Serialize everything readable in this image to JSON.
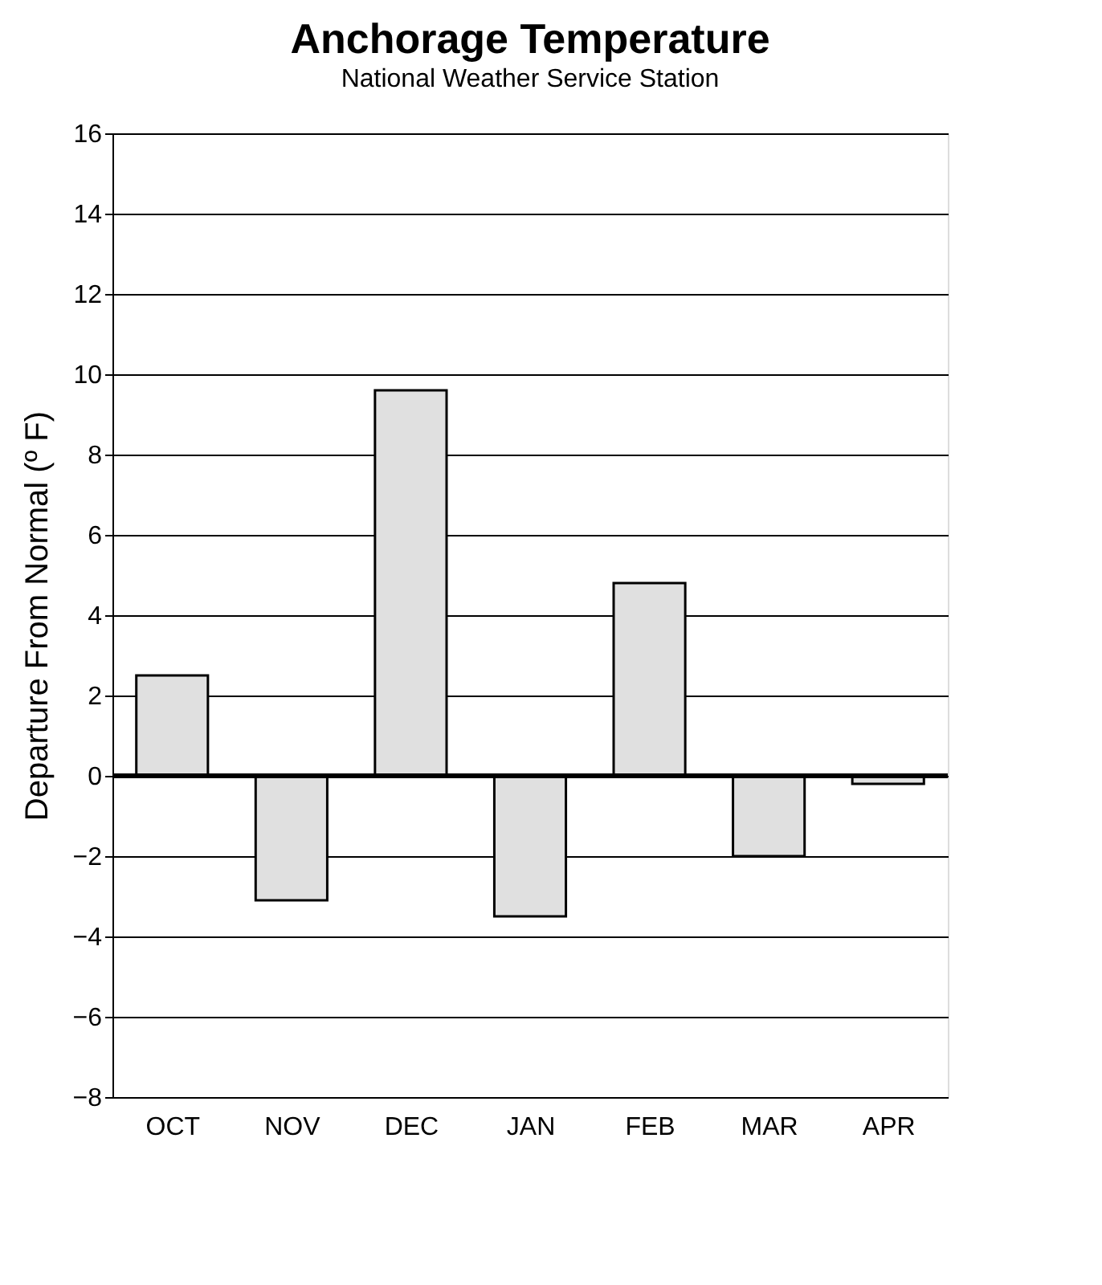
{
  "chart_data": {
    "type": "bar",
    "title": "Anchorage Temperature",
    "subtitle": "National Weather Service Station",
    "ylabel": "Departure From Normal (º F)",
    "categories": [
      "OCT",
      "NOV",
      "DEC",
      "JAN",
      "FEB",
      "MAR",
      "APR"
    ],
    "values": [
      2.5,
      -3.1,
      9.6,
      -3.5,
      4.8,
      -2.0,
      -0.2
    ],
    "color": "#e0e0e0",
    "ylim": [
      -8,
      16
    ],
    "yticks": [
      -8,
      -6,
      -4,
      -2,
      0,
      2,
      4,
      6,
      8,
      10,
      12,
      14,
      16
    ],
    "grid": "y"
  }
}
